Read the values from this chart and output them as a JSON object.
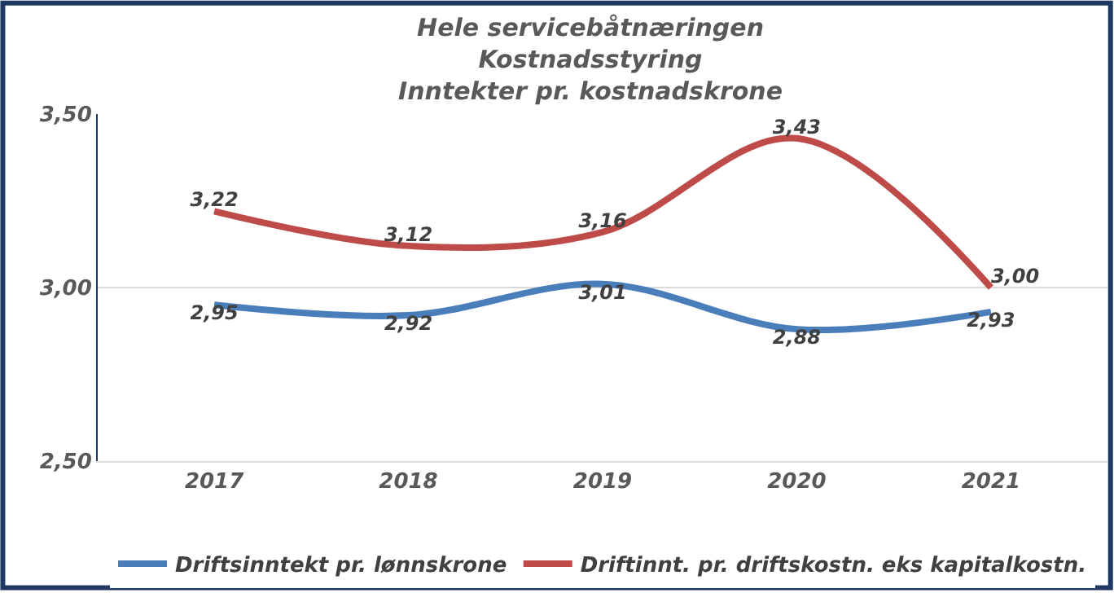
{
  "chart_data": {
    "type": "line",
    "title": "Hele servicebåtnæringen\nKostnadsstyring\nInntekter pr. kostnadskrone",
    "categories": [
      "2017",
      "2018",
      "2019",
      "2020",
      "2021"
    ],
    "series": [
      {
        "name": "Driftsinntekt pr. lønnskrone",
        "color": "#4a7ebb",
        "values": [
          2.95,
          2.92,
          3.01,
          2.88,
          2.93
        ],
        "value_labels": [
          "2,95",
          "2,92",
          "3,01",
          "2,88",
          "2,93"
        ]
      },
      {
        "name": "Driftinnt. pr. driftskostn. eks kapitalkostn.",
        "color": "#be4b48",
        "values": [
          3.22,
          3.12,
          3.16,
          3.43,
          3.0
        ],
        "value_labels": [
          "3,22",
          "3,12",
          "3,16",
          "3,43",
          "3,00"
        ]
      }
    ],
    "ylim": [
      2.5,
      3.5
    ],
    "yticks": [
      {
        "value": 2.5,
        "label": "2,50"
      },
      {
        "value": 3.0,
        "label": "3,00"
      },
      {
        "value": 3.5,
        "label": "3,50"
      }
    ],
    "grid": "y",
    "legend": "bottom",
    "marker": "none",
    "line_style": "solid"
  }
}
